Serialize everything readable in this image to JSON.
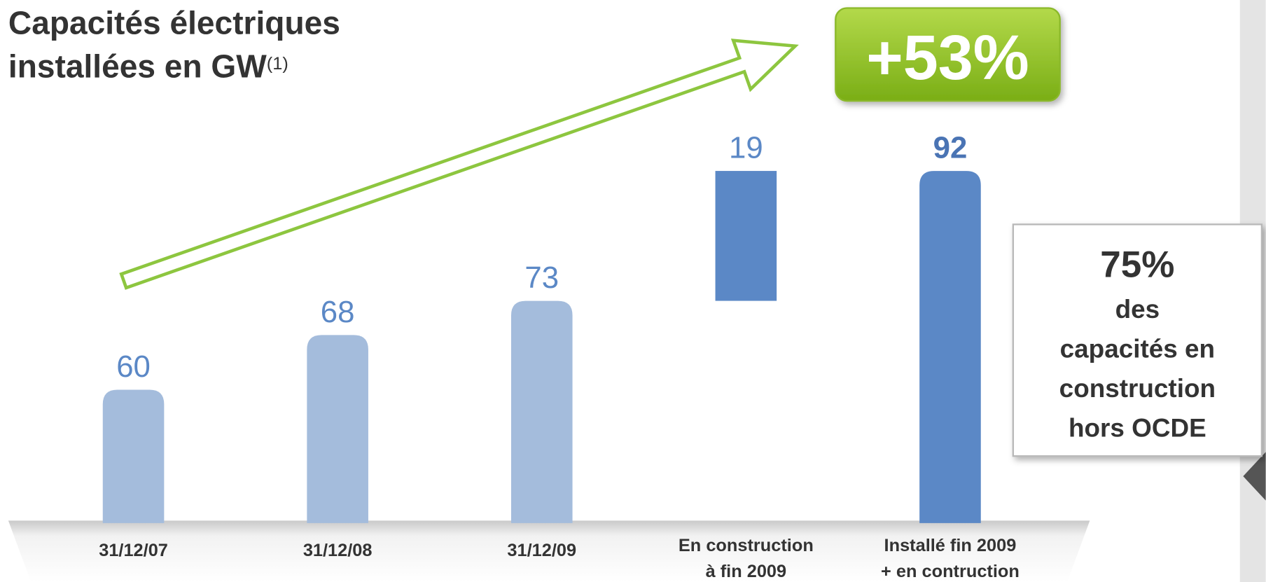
{
  "chart_data": {
    "type": "waterfall",
    "title": [
      "Capacités électriques",
      "installées en GW"
    ],
    "title_note": "(1)",
    "categories": [
      "31/12/07",
      "31/12/08",
      "31/12/09",
      [
        "En construction",
        "à fin 2009"
      ],
      [
        "Installé fin 2009",
        "+ en contruction"
      ]
    ],
    "values": [
      60,
      68,
      73,
      19,
      92
    ],
    "measure": [
      "absolute",
      "absolute",
      "absolute",
      "relative",
      "absolute"
    ],
    "colors": [
      "#a4bcdc",
      "#a4bcdc",
      "#a4bcdc",
      "#5b88c6",
      "#5b88c6"
    ],
    "ylim": [
      40.5,
      100
    ],
    "growth_annotation": "+53%",
    "callout": {
      "headline": "75%",
      "lines": [
        "des",
        "capacités en",
        "construction",
        "hors OCDE"
      ]
    }
  }
}
